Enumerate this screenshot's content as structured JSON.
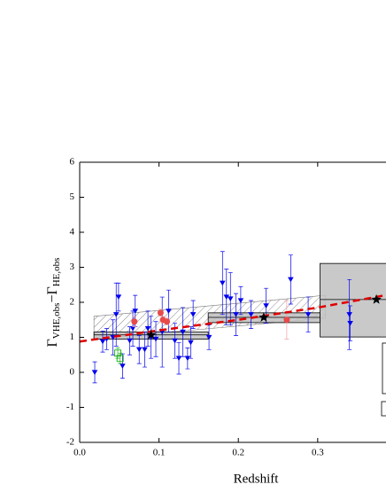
{
  "chart_data": {
    "type": "scatter",
    "x_label": "Redshift",
    "y_label": [
      "Γ",
      "VHE,obs",
      "−Γ",
      "HE,obs"
    ],
    "xlim": [
      0,
      0.385
    ],
    "ylim": [
      -2,
      6
    ],
    "xticks": [
      {
        "value": 0,
        "label": "0.0"
      },
      0.1,
      0.2,
      0.3
    ],
    "yticks": [
      -2,
      -1,
      0,
      1,
      2,
      3,
      4,
      5,
      6
    ],
    "blue_points": {
      "color": "#0000ee",
      "x": [
        0.019,
        0.029,
        0.034,
        0.042,
        0.046,
        0.049,
        0.054,
        0.063,
        0.067,
        0.07,
        0.075,
        0.082,
        0.086,
        0.09,
        0.096,
        0.104,
        0.112,
        0.12,
        0.125,
        0.13,
        0.136,
        0.14,
        0.143,
        0.163,
        0.18,
        0.185,
        0.19,
        0.197,
        0.203,
        0.216,
        0.235,
        0.266,
        0.288,
        0.34,
        0.341
      ],
      "values": [
        0.0,
        0.88,
        0.95,
        1.0,
        1.65,
        2.15,
        0.18,
        0.9,
        1.25,
        1.75,
        0.65,
        0.65,
        1.25,
        1.0,
        0.95,
        1.15,
        1.75,
        0.9,
        0.4,
        1.15,
        0.4,
        0.85,
        1.65,
        1.0,
        2.55,
        2.15,
        2.1,
        1.65,
        2.05,
        1.65,
        1.9,
        2.65,
        1.65,
        1.65,
        1.4
      ],
      "errors": [
        0.3,
        0.3,
        0.3,
        0.5,
        0.9,
        0.4,
        0.35,
        0.4,
        0.5,
        0.45,
        0.4,
        0.5,
        0.5,
        0.6,
        0.5,
        1.0,
        0.6,
        0.5,
        0.45,
        0.7,
        0.3,
        0.45,
        0.4,
        0.35,
        0.9,
        0.8,
        0.75,
        0.6,
        0.4,
        0.4,
        0.5,
        0.7,
        0.5,
        1.0,
        0.5
      ]
    },
    "red_points": {
      "color": "#e84a4a",
      "x": [
        0.069,
        0.102,
        0.105,
        0.11,
        0.261
      ],
      "values": [
        1.45,
        1.7,
        1.5,
        1.45,
        1.5
      ],
      "errors": [
        0.15,
        0.1,
        0.1,
        0.1,
        0.55
      ]
    },
    "green_points": {
      "color": "#2bb52b",
      "x": [
        0.048,
        0.051
      ],
      "values": [
        0.55,
        0.4
      ],
      "errors": [
        0.15,
        0.15
      ]
    },
    "stars": {
      "color": "#000000",
      "x": [
        0.09,
        0.232,
        0.374
      ],
      "values": [
        1.07,
        1.57,
        2.08
      ]
    },
    "boxes": {
      "color": "#c0c0c0",
      "x0": [
        0.018,
        0.162,
        0.303
      ],
      "x1": [
        0.162,
        0.303,
        0.45
      ],
      "low": [
        0.95,
        1.42,
        1.01
      ],
      "high": [
        1.15,
        1.7,
        3.11
      ],
      "median": [
        1.07,
        1.57,
        2.08
      ]
    },
    "band": {
      "x": [
        0.018,
        0.31
      ],
      "low": [
        0.95,
        1.55
      ],
      "high": [
        1.6,
        2.2
      ]
    },
    "fit": {
      "color": "#e00000",
      "x": [
        0,
        0.1,
        0.2,
        0.3,
        0.385
      ],
      "values": [
        0.88,
        1.2,
        1.5,
        1.85,
        2.2
      ]
    }
  }
}
